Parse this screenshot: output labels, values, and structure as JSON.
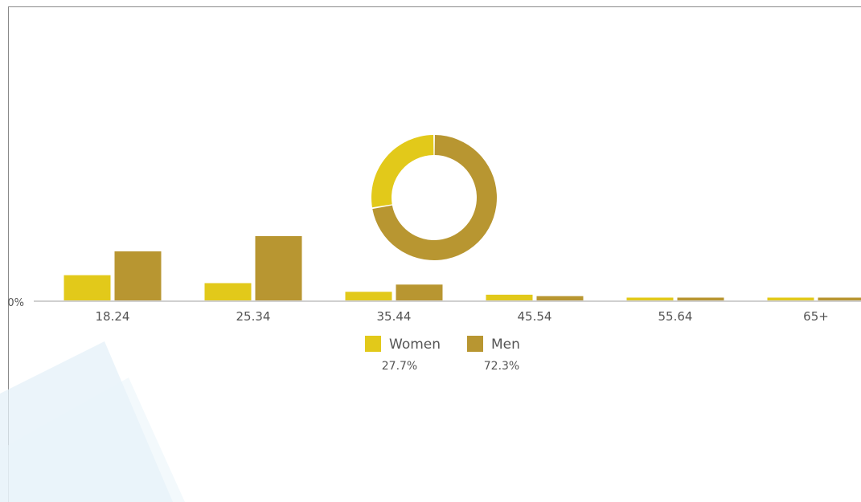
{
  "chart_data": {
    "type": "bar",
    "categories": [
      "18.24",
      "25.34",
      "35.44",
      "45.54",
      "55.64",
      "65+"
    ],
    "series": [
      {
        "name": "Women",
        "color": "#e2c91a",
        "values": [
          36,
          25,
          13,
          9,
          5,
          5
        ]
      },
      {
        "name": "Men",
        "color": "#b89631",
        "values": [
          69,
          90,
          23,
          7,
          5,
          5
        ]
      }
    ],
    "ylim": [
      0,
      200
    ],
    "y_tick_label": "0%",
    "grid": false,
    "legend_position": "bottom-center"
  },
  "donut": {
    "type": "pie",
    "slices": [
      {
        "name": "Women",
        "value": 27.7,
        "label": "27.7%",
        "color": "#e2c91a"
      },
      {
        "name": "Men",
        "value": 72.3,
        "label": "72.3%",
        "color": "#b89631"
      }
    ]
  },
  "colors": {
    "axis": "#d0d0d0",
    "text": "#555555",
    "decor": "#e4f0f8"
  }
}
